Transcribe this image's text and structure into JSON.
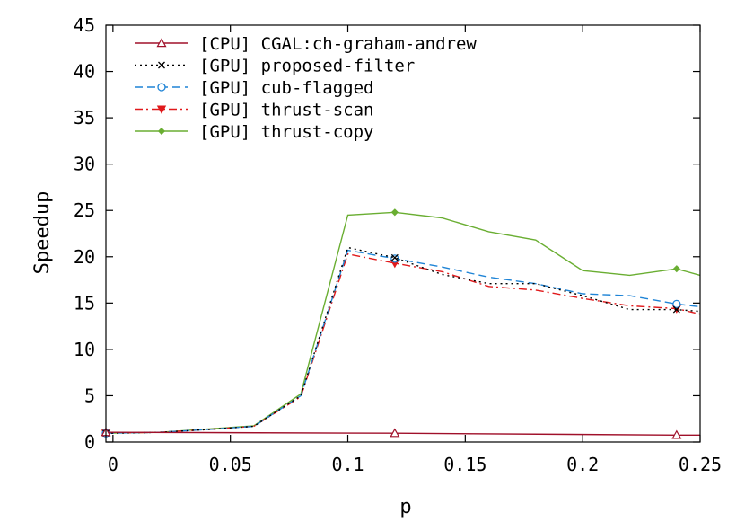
{
  "chart_data": {
    "type": "line",
    "title": "",
    "xlabel": "p",
    "ylabel": "Speedup",
    "xlim": [
      -0.003,
      0.25
    ],
    "ylim": [
      0,
      45
    ],
    "xticks": [
      0,
      0.05,
      0.1,
      0.15,
      0.2,
      0.25
    ],
    "xtick_labels": [
      "0",
      "0.05",
      "0.1",
      "0.15",
      "0.2",
      "0.25"
    ],
    "yticks": [
      0,
      5,
      10,
      15,
      20,
      25,
      30,
      35,
      40,
      45
    ],
    "ytick_labels": [
      "0",
      "5",
      "10",
      "15",
      "20",
      "25",
      "30",
      "35",
      "40",
      "45"
    ],
    "grid": false,
    "legend_position": "top-left",
    "series": [
      {
        "name": "[CPU] CGAL:ch-graham-andrew",
        "color": "#a0102a",
        "dash": "solid",
        "marker": "triangle-open",
        "x": [
          -0.003,
          0.12,
          0.24,
          0.25
        ],
        "y": [
          1.05,
          0.95,
          0.75,
          0.75
        ],
        "marker_x": [
          -0.003,
          0.12,
          0.24
        ]
      },
      {
        "name": "[GPU] proposed-filter",
        "color": "#000000",
        "dash": "dot",
        "marker": "cross",
        "x": [
          -0.003,
          0.02,
          0.04,
          0.06,
          0.08,
          0.1,
          0.12,
          0.14,
          0.16,
          0.18,
          0.2,
          0.22,
          0.24,
          0.25
        ],
        "y": [
          0.95,
          1.05,
          1.35,
          1.7,
          5.0,
          21.0,
          19.9,
          18.1,
          17.1,
          17.1,
          15.8,
          14.3,
          14.3,
          14.1
        ],
        "marker_x": [
          -0.003,
          0.12,
          0.24
        ]
      },
      {
        "name": "[GPU] cub-flagged",
        "color": "#1f84d6",
        "dash": "dash",
        "marker": "circle-open",
        "x": [
          -0.003,
          0.02,
          0.04,
          0.06,
          0.08,
          0.1,
          0.12,
          0.14,
          0.16,
          0.18,
          0.2,
          0.22,
          0.24,
          0.25
        ],
        "y": [
          0.95,
          1.05,
          1.35,
          1.7,
          5.0,
          20.7,
          19.8,
          18.9,
          17.8,
          17.1,
          16.0,
          15.8,
          14.9,
          14.6
        ],
        "marker_x": [
          -0.003,
          0.12,
          0.24
        ]
      },
      {
        "name": "[GPU] thrust-scan",
        "color": "#e0191b",
        "dash": "dashdot",
        "marker": "triangle-down",
        "x": [
          -0.003,
          0.02,
          0.04,
          0.06,
          0.08,
          0.1,
          0.12,
          0.14,
          0.16,
          0.18,
          0.2,
          0.22,
          0.24,
          0.25
        ],
        "y": [
          0.95,
          1.05,
          1.35,
          1.7,
          4.9,
          20.3,
          19.3,
          18.4,
          16.8,
          16.4,
          15.5,
          14.7,
          14.4,
          13.8
        ],
        "marker_x": [
          -0.003,
          0.12,
          0.24
        ]
      },
      {
        "name": "[GPU] thrust-copy",
        "color": "#6aae32",
        "dash": "solid",
        "marker": "diamond",
        "x": [
          -0.003,
          0.02,
          0.04,
          0.06,
          0.08,
          0.1,
          0.12,
          0.14,
          0.16,
          0.18,
          0.2,
          0.22,
          0.24,
          0.25
        ],
        "y": [
          0.95,
          1.05,
          1.4,
          1.75,
          5.2,
          24.5,
          24.8,
          24.2,
          22.7,
          21.8,
          18.5,
          18.0,
          18.7,
          18.0
        ],
        "marker_x": [
          -0.003,
          0.12,
          0.24
        ]
      }
    ]
  }
}
